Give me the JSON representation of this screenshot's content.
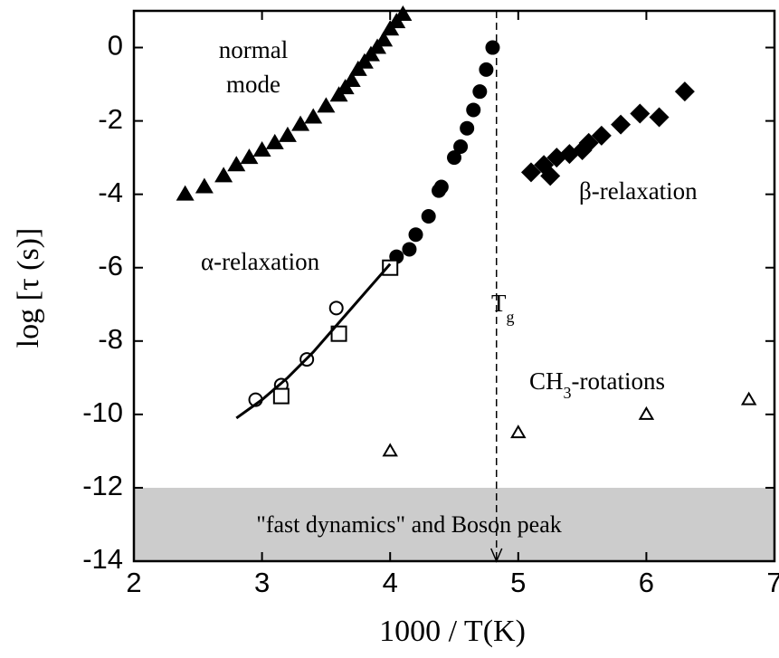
{
  "chart_data": {
    "type": "scatter",
    "xlabel": "1000 / T(K)",
    "ylabel": "log [τ (s)]",
    "xlim": [
      2,
      7
    ],
    "ylim": [
      -14,
      1
    ],
    "xticks": [
      2,
      3,
      4,
      5,
      6,
      7
    ],
    "yticks": [
      0,
      -2,
      -4,
      -6,
      -8,
      -10,
      -12,
      -14
    ],
    "shaded_region": [
      -14,
      -12
    ],
    "shade_color": "#cccccc",
    "vline": 4.83,
    "annotations": [
      "normal",
      "mode",
      "α-relaxation",
      "β-relaxation",
      "T",
      "g",
      "CH",
      "3",
      "-rotations",
      "\"fast dynamics\" and Boson peak"
    ],
    "series": [
      {
        "marker": "triangle-filled",
        "color": "#000000",
        "x": [
          2.4,
          2.55,
          2.7,
          2.8,
          2.9,
          3.0,
          3.1,
          3.2,
          3.3,
          3.4,
          3.5,
          3.6,
          3.65,
          3.7,
          3.75,
          3.8,
          3.85,
          3.9,
          3.95,
          4.0,
          4.05,
          4.1
        ],
        "values": [
          -4.0,
          -3.8,
          -3.5,
          -3.2,
          -3.0,
          -2.8,
          -2.6,
          -2.4,
          -2.1,
          -1.9,
          -1.6,
          -1.3,
          -1.1,
          -0.9,
          -0.6,
          -0.4,
          -0.2,
          0.0,
          0.2,
          0.5,
          0.7,
          0.9
        ]
      },
      {
        "marker": "circle-filled",
        "color": "#000000",
        "x": [
          4.05,
          4.15,
          4.2,
          4.3,
          4.38,
          4.4,
          4.5,
          4.55,
          4.6,
          4.65,
          4.7,
          4.75,
          4.8
        ],
        "values": [
          -5.7,
          -5.5,
          -5.1,
          -4.6,
          -3.9,
          -3.8,
          -3.0,
          -2.7,
          -2.2,
          -1.7,
          -1.2,
          -0.6,
          0.0
        ]
      },
      {
        "marker": "circle-open",
        "color": "#000000",
        "x": [
          2.95,
          3.15,
          3.35,
          3.58
        ],
        "values": [
          -9.6,
          -9.2,
          -8.5,
          -7.1
        ]
      },
      {
        "marker": "square-open",
        "color": "#000000",
        "x": [
          3.15,
          3.6,
          4.0
        ],
        "values": [
          -9.5,
          -7.8,
          -6.0
        ]
      },
      {
        "marker": "line",
        "color": "#000000",
        "x": [
          2.8,
          3.0,
          3.2,
          3.4,
          3.6,
          3.8,
          4.0
        ],
        "values": [
          -10.1,
          -9.6,
          -9.0,
          -8.3,
          -7.5,
          -6.7,
          -5.9
        ]
      },
      {
        "marker": "diamond-filled",
        "color": "#000000",
        "x": [
          5.1,
          5.2,
          5.25,
          5.3,
          5.4,
          5.5,
          5.55,
          5.65,
          5.8,
          5.95,
          6.1,
          6.3
        ],
        "values": [
          -3.4,
          -3.2,
          -3.5,
          -3.0,
          -2.9,
          -2.8,
          -2.6,
          -2.4,
          -2.1,
          -1.8,
          -1.9,
          -1.2
        ]
      },
      {
        "marker": "triangle-open",
        "color": "#000000",
        "x": [
          4.0,
          5.0,
          6.0,
          6.8
        ],
        "values": [
          -11.0,
          -10.5,
          -10.0,
          -9.6
        ]
      }
    ]
  }
}
